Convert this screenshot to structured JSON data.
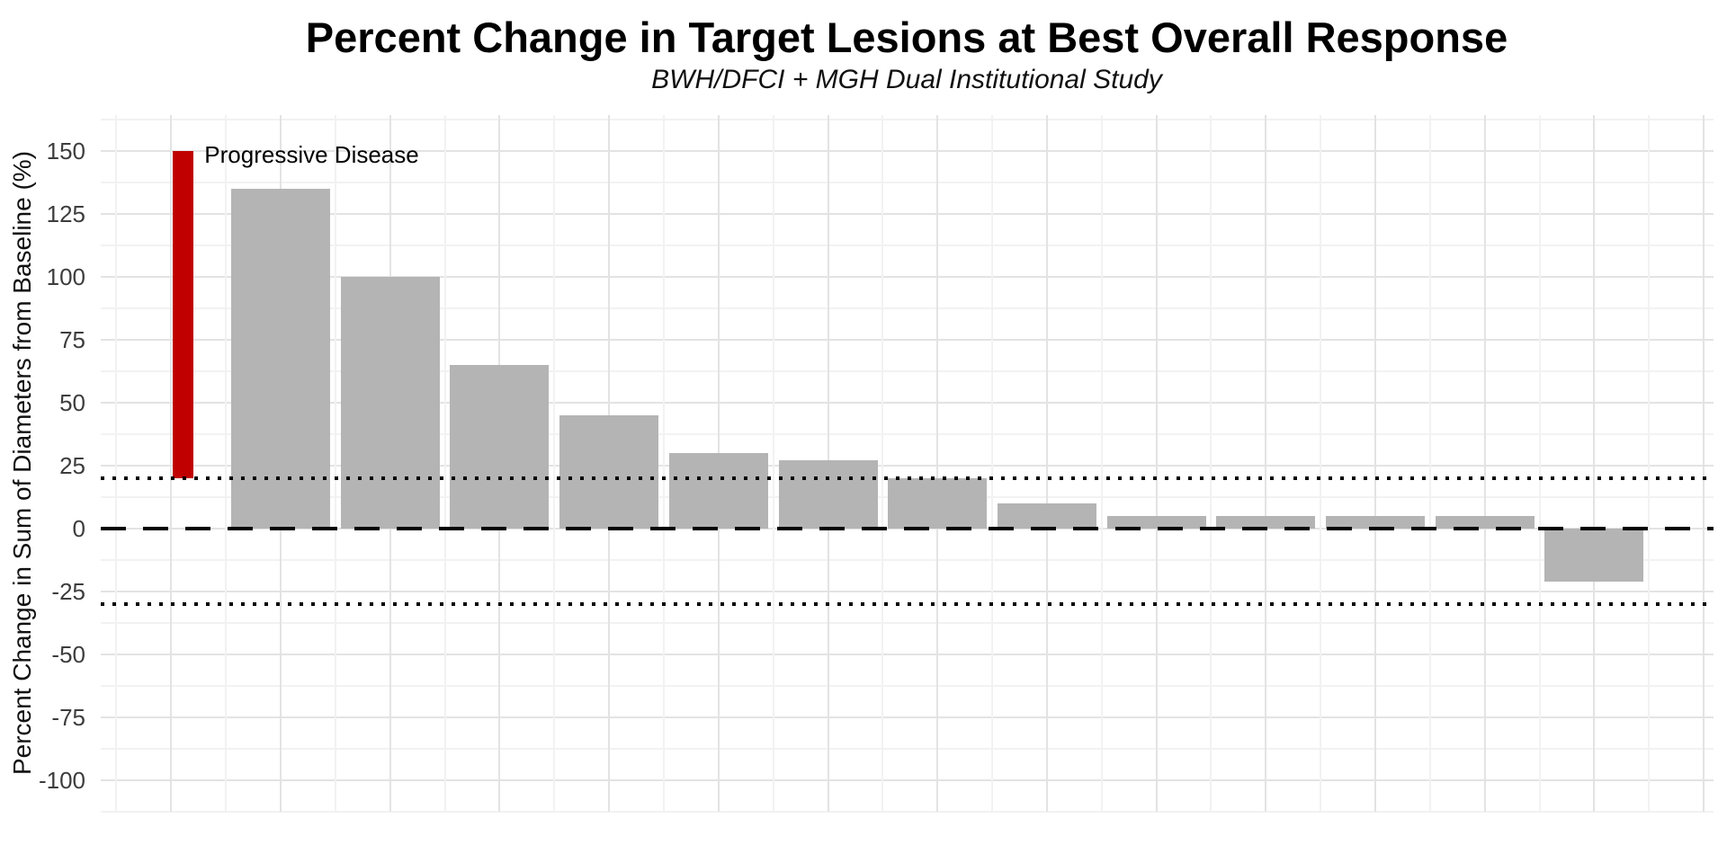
{
  "chart_data": {
    "type": "bar",
    "variant": "waterfall",
    "title": "Percent Change in Target Lesions at Best Overall Response",
    "subtitle": "BWH/DFCI + MGH Dual Institutional Study",
    "xlabel": "",
    "ylabel": "Percent Change in Sum of Diameters from Baseline (%)",
    "values": [
      135,
      100,
      65,
      45,
      30,
      27,
      20,
      10,
      5,
      5,
      5,
      5,
      -21
    ],
    "bar_color": "#b4b4b4",
    "yticks": [
      150,
      125,
      100,
      75,
      50,
      25,
      0,
      -25,
      -50,
      -75,
      -100
    ],
    "minor_tick_step": 12.5,
    "ylim": [
      -112.5,
      164.5
    ],
    "grid": "major and minor, light gray, on white background; no x-axis tick labels",
    "reference_lines": [
      {
        "y": 0,
        "style": "dashed",
        "color": "#000000"
      },
      {
        "y": 20,
        "style": "dotted",
        "color": "#000000"
      },
      {
        "y": -30,
        "style": "dotted",
        "color": "#000000"
      }
    ],
    "legend": {
      "label": "Progressive Disease",
      "key_color": "#c00000",
      "key_value_from": 20,
      "key_value_to": 150
    }
  }
}
